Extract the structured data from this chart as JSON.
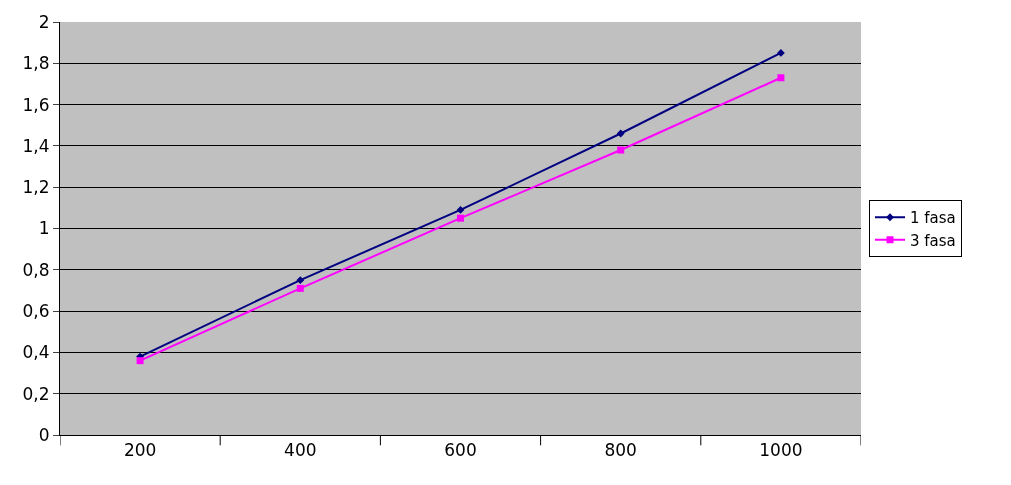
{
  "chart_data": {
    "type": "line",
    "categories": [
      "200",
      "400",
      "600",
      "800",
      "1000"
    ],
    "series": [
      {
        "name": "1 fasa",
        "color": "#000080",
        "marker": "diamond",
        "values": [
          0.38,
          0.75,
          1.09,
          1.46,
          1.85
        ]
      },
      {
        "name": "3 fasa",
        "color": "#ff00ff",
        "marker": "square",
        "values": [
          0.36,
          0.71,
          1.05,
          1.38,
          1.73
        ]
      }
    ],
    "ylim": [
      0,
      2
    ],
    "yticks": [
      0,
      {
        "value": 0.2,
        "label": "0,2"
      },
      {
        "value": 0.4,
        "label": "0,4"
      },
      {
        "value": 0.6,
        "label": "0,6"
      },
      {
        "value": 0.8,
        "label": "0,8"
      },
      1,
      {
        "value": 1.2,
        "label": "1,2"
      },
      {
        "value": 1.4,
        "label": "1,4"
      },
      {
        "value": 1.6,
        "label": "1,6"
      },
      {
        "value": 1.8,
        "label": "1,8"
      },
      2
    ],
    "grid": "y",
    "legend": "right",
    "line_style": "solid"
  }
}
